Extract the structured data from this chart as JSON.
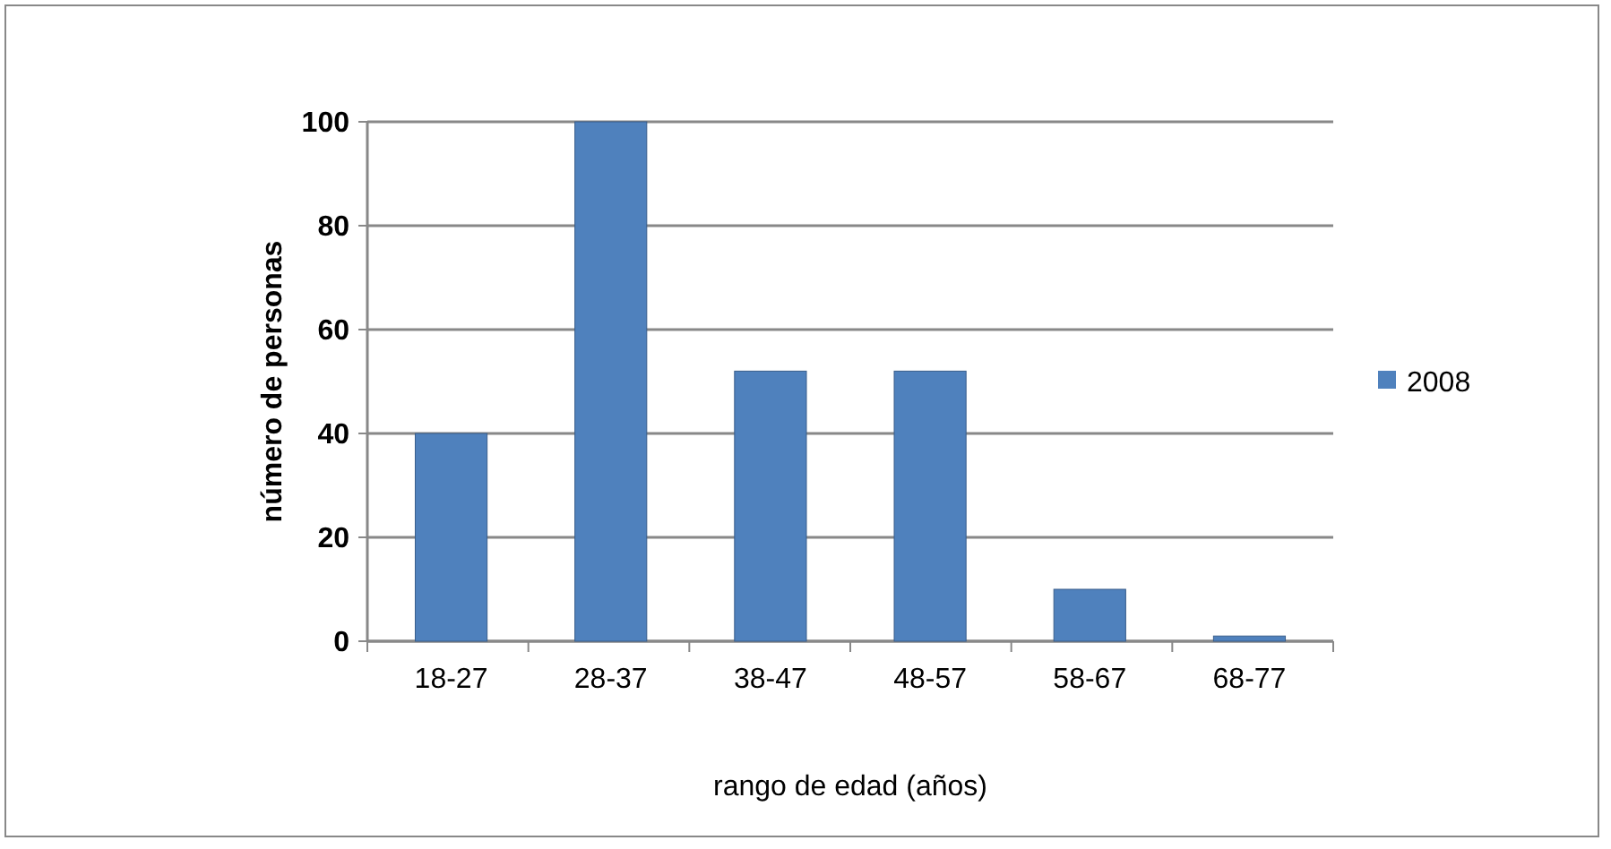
{
  "chart_data": {
    "type": "bar",
    "xlabel": "rango de edad (años)",
    "ylabel": "número de personas",
    "categories": [
      "18-27",
      "28-37",
      "38-47",
      "48-57",
      "58-67",
      "68-77"
    ],
    "series": [
      {
        "name": "2008",
        "color": "#4f81bd",
        "values": [
          40,
          100,
          52,
          52,
          10,
          1
        ]
      }
    ],
    "ylim": [
      0,
      100
    ],
    "yticks": [
      0,
      20,
      40,
      60,
      80,
      100
    ],
    "grid": "y",
    "legend": "right"
  }
}
